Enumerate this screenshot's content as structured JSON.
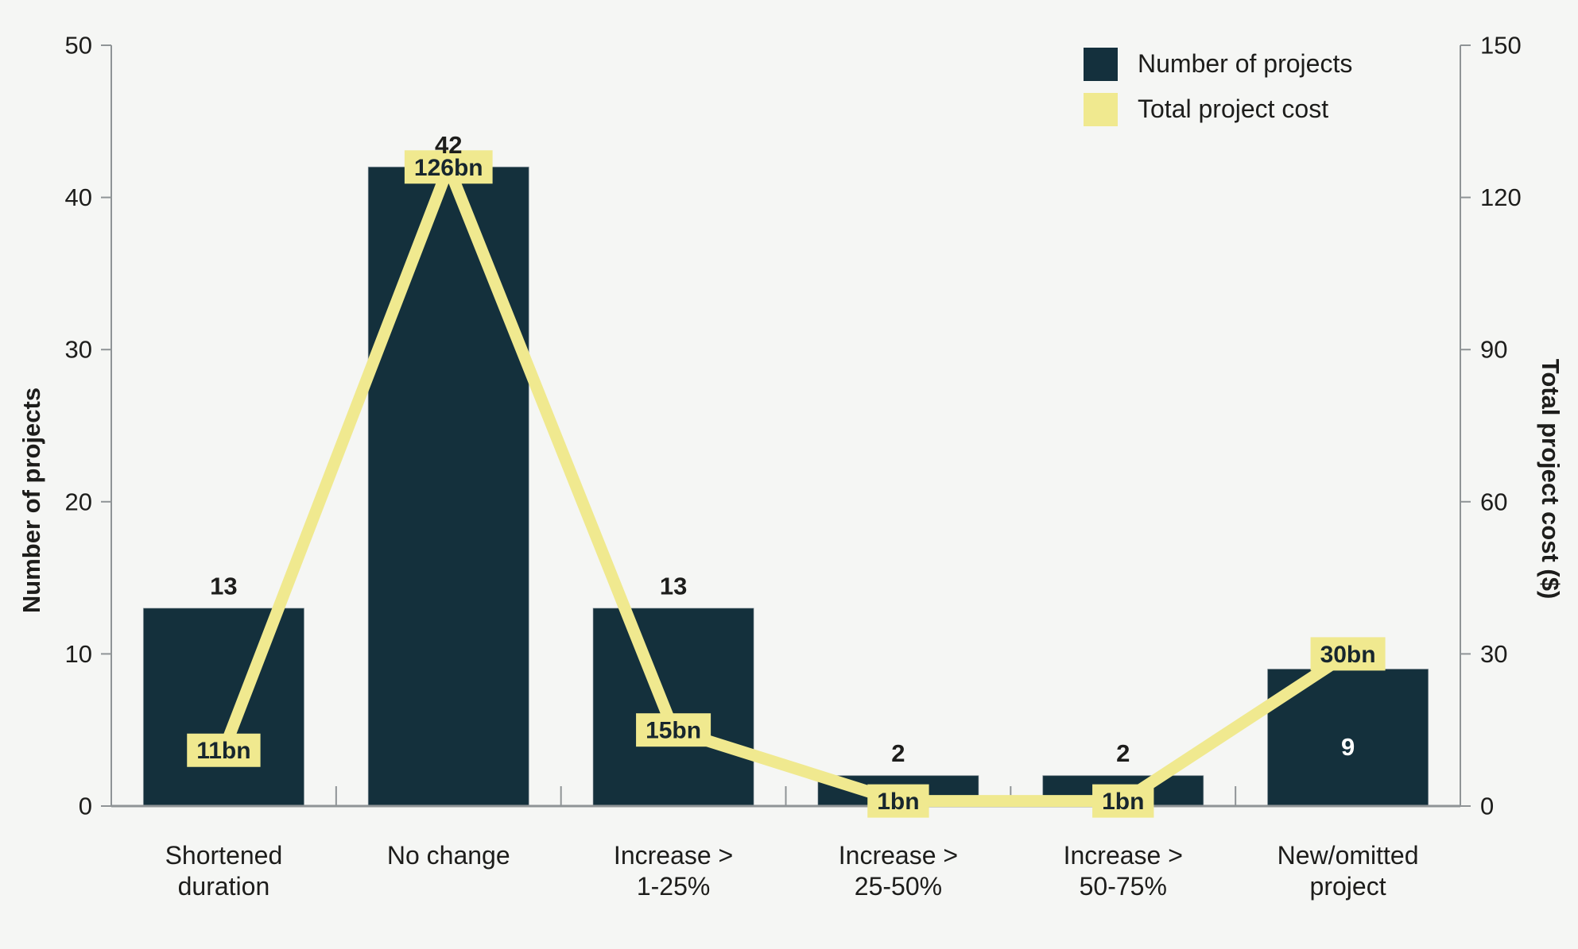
{
  "chart_data": {
    "type": "bar+line",
    "title": "",
    "categories": [
      "Shortened duration",
      "No change",
      "Increase > 1-25%",
      "Increase > 25-50%",
      "Increase > 50-75%",
      "New/omitted project"
    ],
    "category_lines": [
      [
        "Shortened",
        "duration"
      ],
      [
        "No change"
      ],
      [
        "Increase >",
        "1-25%"
      ],
      [
        "Increase >",
        "25-50%"
      ],
      [
        "Increase >",
        "50-75%"
      ],
      [
        "New/omitted",
        "project"
      ]
    ],
    "series": [
      {
        "name": "Number of projects",
        "type": "bar",
        "axis": "left",
        "values": [
          13,
          42,
          13,
          2,
          2,
          9
        ],
        "value_labels": [
          "13",
          "42",
          "13",
          "2",
          "2",
          "9"
        ],
        "value_label_inside": [
          false,
          false,
          false,
          false,
          false,
          true
        ]
      },
      {
        "name": "Total project cost",
        "type": "line",
        "axis": "right",
        "values_bn": [
          11,
          126,
          15,
          1,
          1,
          30
        ],
        "point_labels": [
          "11bn",
          "126bn",
          "15bn",
          "1bn",
          "1bn",
          "30bn"
        ]
      }
    ],
    "left_axis": {
      "label": "Number of projects",
      "min": 0,
      "max": 50,
      "ticks": [
        0,
        10,
        20,
        30,
        40,
        50
      ]
    },
    "right_axis": {
      "label": "Total project cost ($)",
      "min": 0,
      "max": 150,
      "ticks": [
        0,
        30,
        60,
        90,
        120,
        150
      ]
    },
    "legend": {
      "position": "top-right",
      "items": [
        {
          "label": "Number of projects",
          "color": "#14303d"
        },
        {
          "label": "Total project cost",
          "color": "#f0e98f"
        }
      ]
    },
    "colors": {
      "bar": "#14303c",
      "bar_edge": "#7e8b91",
      "line": "#f0e98f",
      "label_box": "#f0e98f",
      "label_box_text": "#17262e",
      "background": "#f5f6f4",
      "axis": "#8f9496",
      "text": "#1d1d1b",
      "bar_inside_label": "#ffffff"
    },
    "grid": false
  }
}
